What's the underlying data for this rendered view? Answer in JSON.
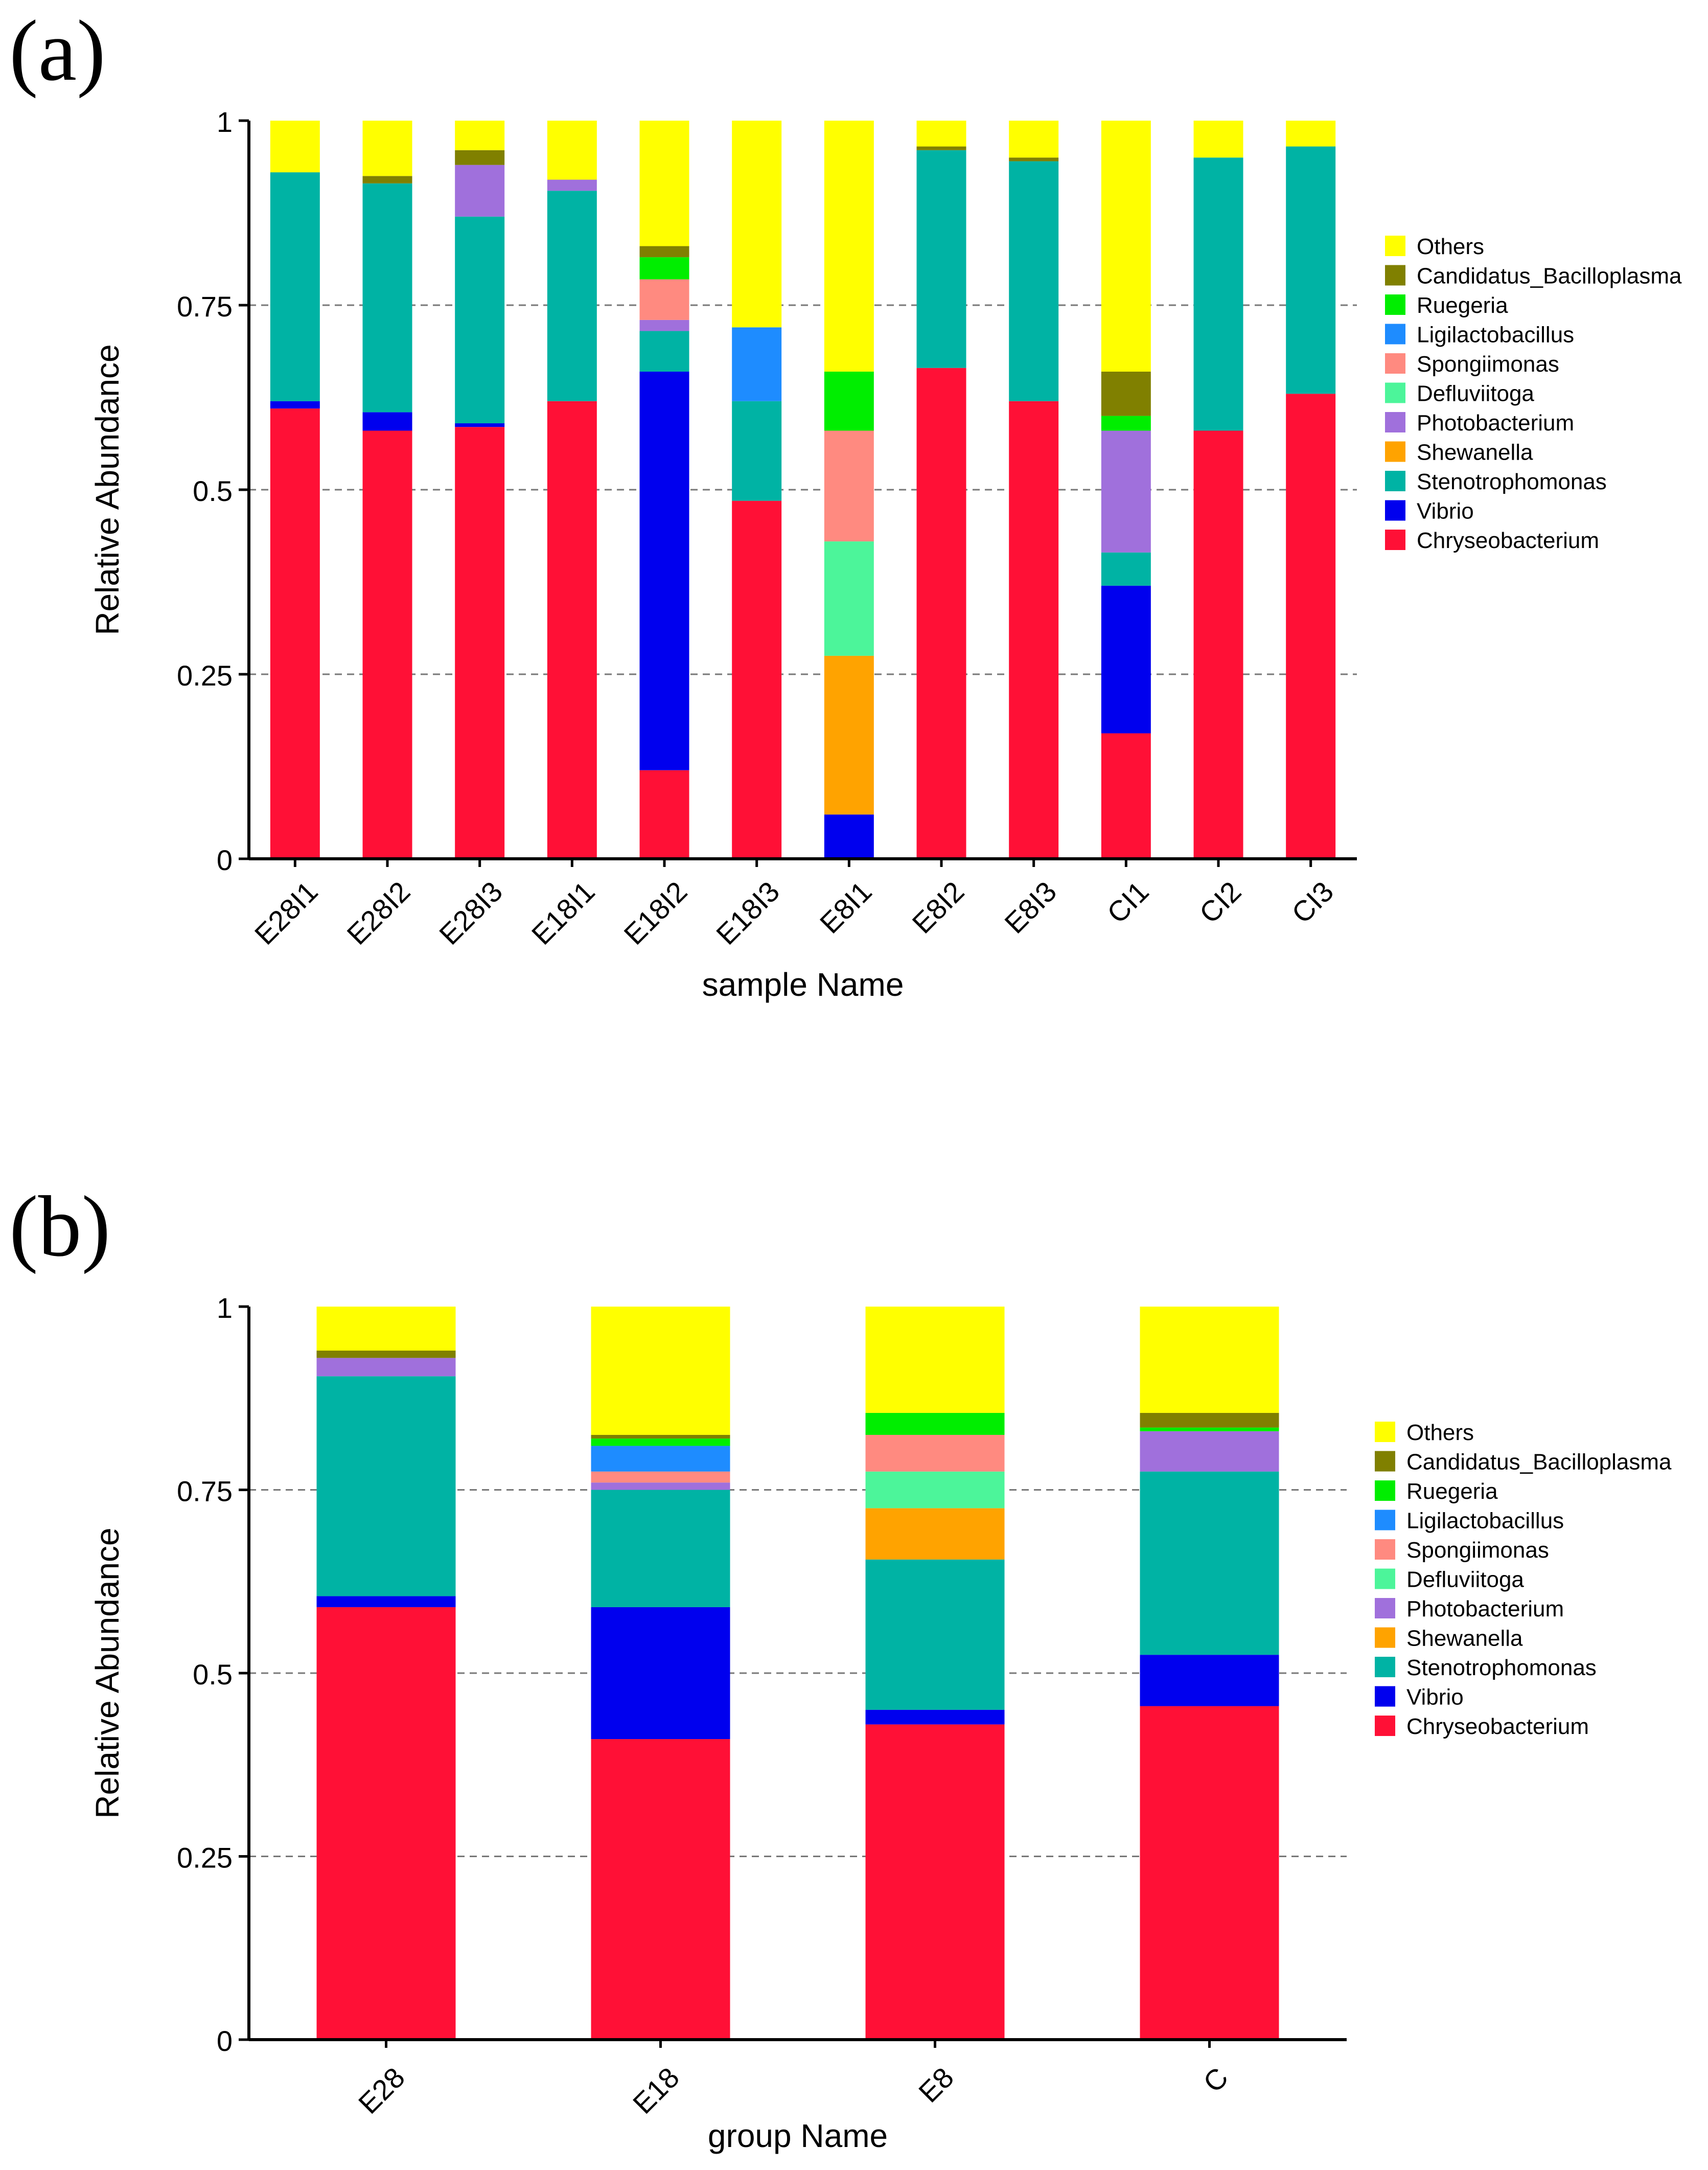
{
  "species": [
    "Chryseobacterium",
    "Vibrio",
    "Stenotrophomonas",
    "Shewanella",
    "Photobacterium",
    "Defluviitoga",
    "Spongiimonas",
    "Ligilactobacillus",
    "Ruegeria",
    "Candidatus_Bacilloplasma",
    "Others"
  ],
  "colors": {
    "Chryseobacterium": "#ff1036",
    "Vibrio": "#0000ee",
    "Stenotrophomonas": "#00b3a4",
    "Shewanella": "#ffa300",
    "Photobacterium": "#a070dc",
    "Defluviitoga": "#4cf59a",
    "Spongiimonas": "#ff8a80",
    "Ligilactobacillus": "#1e8cff",
    "Ruegeria": "#00ee00",
    "Candidatus_Bacilloplasma": "#808000",
    "Others": "#ffff00"
  },
  "legend_order": [
    "Others",
    "Candidatus_Bacilloplasma",
    "Ruegeria",
    "Ligilactobacillus",
    "Spongiimonas",
    "Defluviitoga",
    "Photobacterium",
    "Shewanella",
    "Stenotrophomonas",
    "Vibrio",
    "Chryseobacterium"
  ],
  "chart_data": [
    {
      "type": "bar",
      "stacked": true,
      "panel_label": "(a)",
      "title": "",
      "xlabel": "sample Name",
      "ylabel": "Relative Abundance",
      "ylim": [
        0,
        1
      ],
      "yticks": [
        "0",
        "0.25",
        "0.5",
        "0.75",
        "1"
      ],
      "grid": "dashed at 0.25, 0.5, 0.75",
      "legend_position": "right",
      "categories": [
        "E28I1",
        "E28I2",
        "E28I3",
        "E18I1",
        "E18I2",
        "E18I3",
        "E8I1",
        "E8I2",
        "E8I3",
        "CI1",
        "CI2",
        "CI3"
      ],
      "series": [
        {
          "name": "Chryseobacterium",
          "values": [
            0.61,
            0.58,
            0.585,
            0.62,
            0.12,
            0.485,
            0.0,
            0.665,
            0.62,
            0.17,
            0.58,
            0.63
          ]
        },
        {
          "name": "Vibrio",
          "values": [
            0.01,
            0.025,
            0.005,
            0.0,
            0.54,
            0.0,
            0.06,
            0.0,
            0.0,
            0.2,
            0.0,
            0.0
          ]
        },
        {
          "name": "Stenotrophomonas",
          "values": [
            0.31,
            0.31,
            0.28,
            0.285,
            0.055,
            0.135,
            0.0,
            0.295,
            0.325,
            0.045,
            0.37,
            0.335
          ]
        },
        {
          "name": "Shewanella",
          "values": [
            0.0,
            0.0,
            0.0,
            0.0,
            0.0,
            0.0,
            0.215,
            0.0,
            0.0,
            0.0,
            0.0,
            0.0
          ]
        },
        {
          "name": "Photobacterium",
          "values": [
            0.0,
            0.0,
            0.07,
            0.015,
            0.015,
            0.0,
            0.0,
            0.0,
            0.0,
            0.165,
            0.0,
            0.0
          ]
        },
        {
          "name": "Defluviitoga",
          "values": [
            0.0,
            0.0,
            0.0,
            0.0,
            0.0,
            0.0,
            0.155,
            0.0,
            0.0,
            0.0,
            0.0,
            0.0
          ]
        },
        {
          "name": "Spongiimonas",
          "values": [
            0.0,
            0.0,
            0.0,
            0.0,
            0.055,
            0.0,
            0.15,
            0.0,
            0.0,
            0.0,
            0.0,
            0.0
          ]
        },
        {
          "name": "Ligilactobacillus",
          "values": [
            0.0,
            0.0,
            0.0,
            0.0,
            0.0,
            0.1,
            0.0,
            0.0,
            0.0,
            0.0,
            0.0,
            0.0
          ]
        },
        {
          "name": "Ruegeria",
          "values": [
            0.0,
            0.0,
            0.0,
            0.0,
            0.03,
            0.0,
            0.08,
            0.0,
            0.0,
            0.02,
            0.0,
            0.0
          ]
        },
        {
          "name": "Candidatus_Bacilloplasma",
          "values": [
            0.0,
            0.01,
            0.02,
            0.0,
            0.015,
            0.0,
            0.0,
            0.005,
            0.005,
            0.06,
            0.0,
            0.0
          ]
        },
        {
          "name": "Others",
          "values": [
            0.07,
            0.075,
            0.04,
            0.08,
            0.17,
            0.28,
            0.34,
            0.035,
            0.05,
            0.34,
            0.05,
            0.035
          ]
        }
      ]
    },
    {
      "type": "bar",
      "stacked": true,
      "panel_label": "(b)",
      "title": "",
      "xlabel": "group Name",
      "ylabel": "Relative Abundance",
      "ylim": [
        0,
        1
      ],
      "yticks": [
        "0",
        "0.25",
        "0.5",
        "0.75",
        "1"
      ],
      "grid": "dashed at 0.25, 0.5, 0.75",
      "legend_position": "right",
      "categories": [
        "E28",
        "E18",
        "E8",
        "C"
      ],
      "series": [
        {
          "name": "Chryseobacterium",
          "values": [
            0.59,
            0.41,
            0.43,
            0.455
          ]
        },
        {
          "name": "Vibrio",
          "values": [
            0.015,
            0.18,
            0.02,
            0.07
          ]
        },
        {
          "name": "Stenotrophomonas",
          "values": [
            0.3,
            0.16,
            0.205,
            0.25
          ]
        },
        {
          "name": "Shewanella",
          "values": [
            0.0,
            0.0,
            0.07,
            0.0
          ]
        },
        {
          "name": "Photobacterium",
          "values": [
            0.025,
            0.01,
            0.0,
            0.055
          ]
        },
        {
          "name": "Defluviitoga",
          "values": [
            0.0,
            0.0,
            0.05,
            0.0
          ]
        },
        {
          "name": "Spongiimonas",
          "values": [
            0.0,
            0.015,
            0.05,
            0.0
          ]
        },
        {
          "name": "Ligilactobacillus",
          "values": [
            0.0,
            0.035,
            0.0,
            0.0
          ]
        },
        {
          "name": "Ruegeria",
          "values": [
            0.0,
            0.01,
            0.03,
            0.005
          ]
        },
        {
          "name": "Candidatus_Bacilloplasma",
          "values": [
            0.01,
            0.005,
            0.0,
            0.02
          ]
        },
        {
          "name": "Others",
          "values": [
            0.06,
            0.175,
            0.145,
            0.145
          ]
        }
      ]
    }
  ]
}
